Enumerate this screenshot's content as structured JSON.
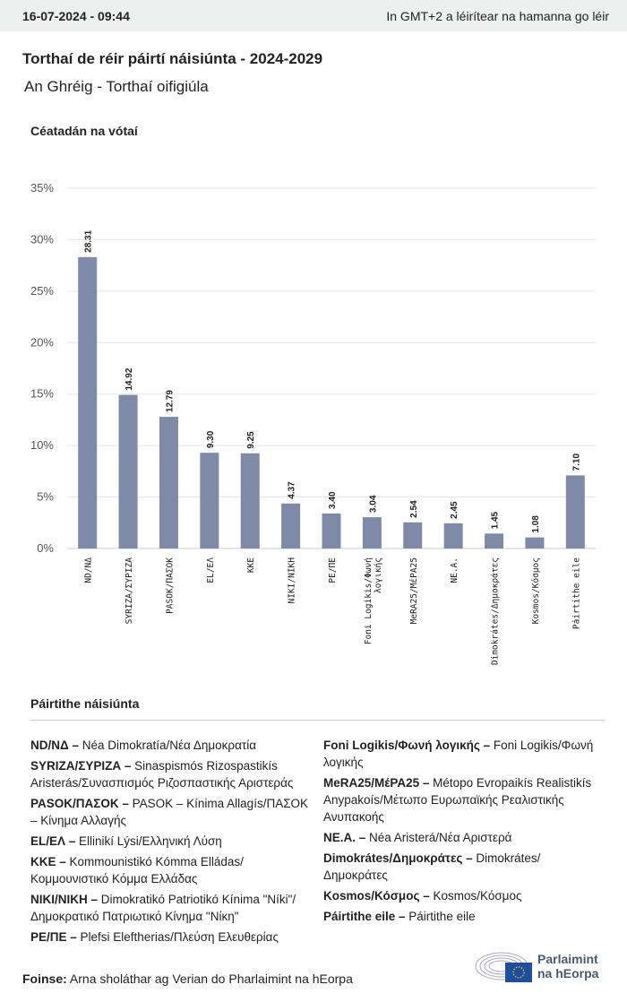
{
  "header": {
    "datetime": "16-07-2024 - 09:44",
    "timezone_note": "In GMT+2 a léirítear na hamanna go léir"
  },
  "title": "Torthaí de réir páirtí náisiúnta - 2024-2029",
  "subtitle": "An Ghréig - Torthaí oifigiúla",
  "chart_data": {
    "type": "bar",
    "ylabel": "Céatadán na vótaí",
    "ylim": [
      0,
      35
    ],
    "yticks": [
      "0%",
      "5%",
      "10%",
      "15%",
      "20%",
      "25%",
      "30%",
      "35%"
    ],
    "grid": true,
    "bar_color": "#7f89a8",
    "categories": [
      "ND/ΝΔ",
      "SYRIZA/ΣΥΡΙΖΑ",
      "PASOK/ΠΑΣΟΚ",
      "EL/ΕΛ",
      "KKE",
      "NIKI/ΝΙΚΗ",
      "PE/ΠΕ",
      "Foni Logikis/Φωνή λογικής",
      "MeRA25/ΜέΡΑ25",
      "NE.A.",
      "Dimokrátes/Δημοκράτες",
      "Kosmos/Κόσμος",
      "Páirtithe eile"
    ],
    "values": [
      28.31,
      14.92,
      12.79,
      9.3,
      9.25,
      4.37,
      3.4,
      3.04,
      2.54,
      2.45,
      1.45,
      1.08,
      7.1
    ],
    "data_labels": [
      "28.31",
      "14.92",
      "12.79",
      "9.30",
      "9.25",
      "4.37",
      "3.40",
      "3.04",
      "2.54",
      "2.45",
      "1.45",
      "1.08",
      "7.10"
    ]
  },
  "legend": {
    "heading": "Páirtithe náisiúnta",
    "left": [
      {
        "abbr": "ND/ΝΔ",
        "name": "Néa Dimokratía/Νέα Δημοκρατία"
      },
      {
        "abbr": "SYRIZA/ΣΥΡΙΖΑ",
        "name": "Sinaspismós Rizospastikís Aristerás/Συνασπισμός Ριζοσπαστικής Αριστεράς"
      },
      {
        "abbr": "PASOK/ΠΑΣΟΚ",
        "name": "PASOK – Kínima Allagís/ΠΑΣΟΚ – Κίνημα Αλλαγής"
      },
      {
        "abbr": "EL/ΕΛ",
        "name": "Ellinikí Lýsi/Ελληνική Λύση"
      },
      {
        "abbr": "KKE",
        "name": "Kommounistikó Kómma Elládas/ Κομμουνιστικό Κόμμα Ελλάδας"
      },
      {
        "abbr": "NIKI/ΝΙΚΗ",
        "name": "Dimokratikó Patriotikó Kínima \"Níki\"/ Δημοκρατικό Πατριωτικό Κίνημα \"Νίκη\""
      },
      {
        "abbr": "PE/ΠΕ",
        "name": "Plefsi Eleftherias/Πλεύση Ελευθερίας"
      }
    ],
    "right": [
      {
        "abbr": "Foni Logikis/Φωνή λογικής",
        "name": "Foni Logikis/Φωνή λογικής"
      },
      {
        "abbr": "MeRA25/ΜέΡΑ25",
        "name": "Métopo Evropaikís Realistikís Anypakoís/Μέτωπο Ευρωπαϊκής Ρεαλιστικής Ανυπακοής"
      },
      {
        "abbr": "NE.A.",
        "name": "Néa Aristerá/Νέα Αριστερά"
      },
      {
        "abbr": "Dimokrátes/Δημοκράτες",
        "name": "Dimokrátes/ Δημοκράτες"
      },
      {
        "abbr": "Kosmos/Κόσμος",
        "name": "Kosmos/Κόσμος"
      },
      {
        "abbr": "Páirtithe eile",
        "name": "Páirtithe eile"
      }
    ]
  },
  "footer": {
    "source_label": "Foinse:",
    "source_text": "Arna sholáthar ag Verian do Pharlaimint na hEorpa"
  },
  "logo": {
    "line1": "Parlaimint",
    "line2": "na hEorpa"
  }
}
